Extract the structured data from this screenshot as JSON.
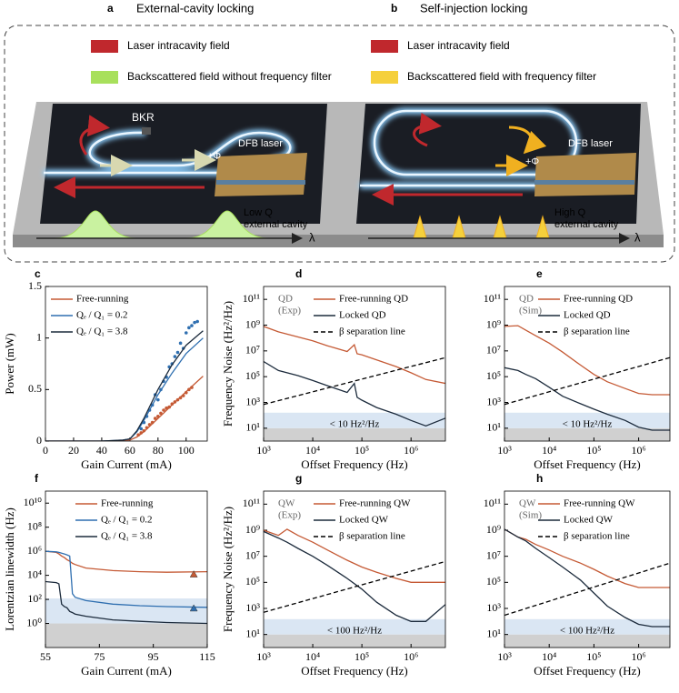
{
  "figure_top": {
    "a": {
      "letter": "a",
      "title": "External-cavity locking",
      "legend": [
        {
          "label": "Laser intracavity field",
          "color": "#c0282d"
        },
        {
          "label": "Backscattered field without frequency filter",
          "color": "#a8e05c"
        }
      ],
      "labels": {
        "bkr": "BKR",
        "phase": "+Φ",
        "laser": "DFB laser",
        "cavity": [
          "Low Q",
          "external cavity"
        ],
        "axis": "λ"
      }
    },
    "b": {
      "letter": "b",
      "title": "Self-injection locking",
      "legend": [
        {
          "label": "Laser intracavity field",
          "color": "#c0282d"
        },
        {
          "label": "Backscattered field with frequency filter",
          "color": "#f5d03c"
        }
      ],
      "labels": {
        "phase": "+Φ",
        "laser": "DFB laser",
        "cavity": [
          "High Q",
          "external cavity"
        ],
        "axis": "λ"
      }
    }
  },
  "chart_data": [
    {
      "type": "line",
      "panel": "c",
      "xlabel": "Gain Current (mA)",
      "ylabel": "Power (mW)",
      "xlim": [
        0,
        115
      ],
      "ylim": [
        0,
        1.5
      ],
      "xticks": [
        0,
        20,
        40,
        60,
        80,
        100
      ],
      "yticks": [
        0,
        0.5,
        1,
        1.5
      ],
      "legend": "upper left",
      "series": [
        {
          "name": "Free-running",
          "color": "#c55a35",
          "x": [
            0,
            20,
            40,
            55,
            60,
            65,
            70,
            80,
            90,
            100,
            112
          ],
          "values": [
            0,
            0,
            0,
            0.005,
            0.01,
            0.04,
            0.09,
            0.22,
            0.35,
            0.48,
            0.63
          ],
          "scatter": {
            "x": [
              66,
              68,
              70,
              72,
              74,
              76,
              78,
              80,
              82,
              84,
              86,
              88,
              90,
              92,
              94,
              96,
              98,
              100,
              102,
              104
            ],
            "y": [
              0.06,
              0.08,
              0.1,
              0.13,
              0.16,
              0.18,
              0.22,
              0.24,
              0.27,
              0.3,
              0.32,
              0.33,
              0.36,
              0.38,
              0.4,
              0.42,
              0.44,
              0.47,
              0.5,
              0.52
            ]
          }
        },
        {
          "name": "Qₑ / Q₁ = 0.2",
          "color": "#2f6fb0",
          "x": [
            0,
            20,
            40,
            55,
            60,
            65,
            70,
            80,
            90,
            100,
            112
          ],
          "values": [
            0,
            0,
            0,
            0.01,
            0.02,
            0.09,
            0.2,
            0.45,
            0.66,
            0.85,
            1.0
          ],
          "scatter": {
            "x": [
              68,
              70,
              72,
              74,
              76,
              78,
              80,
              82,
              84,
              86,
              88,
              90,
              92,
              94,
              96,
              98,
              100,
              102,
              104,
              106,
              108
            ],
            "y": [
              0.12,
              0.18,
              0.24,
              0.3,
              0.35,
              0.45,
              0.4,
              0.5,
              0.58,
              0.62,
              0.72,
              0.75,
              0.82,
              0.86,
              0.95,
              0.9,
              1.05,
              1.1,
              1.12,
              1.15,
              1.16
            ]
          }
        },
        {
          "name": "Qₑ / Q₁ = 3.8",
          "color": "#1c2b3c",
          "x": [
            0,
            20,
            40,
            55,
            60,
            65,
            70,
            80,
            90,
            100,
            112
          ],
          "values": [
            0,
            0,
            0,
            0.01,
            0.02,
            0.1,
            0.22,
            0.5,
            0.74,
            0.93,
            1.07
          ]
        }
      ]
    },
    {
      "type": "line",
      "panel": "d",
      "xlabel": "Offset Frequency (Hz)",
      "ylabel": "Frequency Noise (Hz²/Hz)",
      "xlog": true,
      "ylog": true,
      "xlim": [
        1000,
        5000000
      ],
      "ylim": [
        1,
        1000000000000
      ],
      "xticks": [
        {
          "value": 1000,
          "label": "10³"
        },
        {
          "value": 10000,
          "label": "10⁴"
        },
        {
          "value": 100000,
          "label": "10⁵"
        },
        {
          "value": 1000000,
          "label": "10⁶"
        }
      ],
      "yticks": [
        {
          "value": 10,
          "label": "10¹"
        },
        {
          "value": 1000,
          "label": "10³"
        },
        {
          "value": 100000,
          "label": "10⁵"
        },
        {
          "value": 10000000,
          "label": "10⁷"
        },
        {
          "value": 1000000000,
          "label": "10⁹"
        },
        {
          "value": 100000000000,
          "label": "10¹¹"
        }
      ],
      "legend": "upper right",
      "tag": [
        "QD",
        "(Exp)"
      ],
      "band_label": "< 10 Hz²/Hz",
      "bands": [
        {
          "from": 1,
          "to": 10,
          "color": "#d0d0d0"
        },
        {
          "from": 10,
          "to": 160,
          "color": "#dae6f3"
        }
      ],
      "series": [
        {
          "name": "Free-running QD",
          "color": "#c55a35",
          "x": [
            1000,
            2000,
            5000,
            10000,
            20000,
            50000,
            70000,
            80000,
            100000,
            200000,
            500000,
            1000000,
            2000000,
            5000000
          ],
          "values": [
            800000000,
            300000000,
            120000000,
            60000000,
            25000000,
            9000000,
            30000000,
            6000000,
            5000000,
            2000000,
            600000,
            200000,
            60000,
            30000
          ]
        },
        {
          "name": "Locked QD",
          "color": "#1c2b3c",
          "x": [
            1000,
            2000,
            5000,
            10000,
            20000,
            50000,
            70000,
            80000,
            100000,
            200000,
            500000,
            1000000,
            2000000,
            5000000
          ],
          "values": [
            1500000,
            300000,
            120000,
            50000,
            20000,
            6000,
            30000,
            2500,
            1500,
            400,
            120,
            40,
            15,
            60
          ]
        },
        {
          "name": "β separation line",
          "color": "#000000",
          "dash": true,
          "x": [
            1000,
            5000000
          ],
          "values": [
            700,
            3000000
          ]
        }
      ]
    },
    {
      "type": "line",
      "panel": "e",
      "xlabel": "Offset Frequency (Hz)",
      "xlog": true,
      "ylog": true,
      "xlim": [
        1000,
        5000000
      ],
      "ylim": [
        1,
        1000000000000
      ],
      "xticks": [
        {
          "value": 1000,
          "label": "10³"
        },
        {
          "value": 10000,
          "label": "10⁴"
        },
        {
          "value": 100000,
          "label": "10⁵"
        },
        {
          "value": 1000000,
          "label": "10⁶"
        }
      ],
      "yticks": [
        {
          "value": 10,
          "label": "10¹"
        },
        {
          "value": 1000,
          "label": "10³"
        },
        {
          "value": 100000,
          "label": "10⁵"
        },
        {
          "value": 10000000,
          "label": "10⁷"
        },
        {
          "value": 1000000000,
          "label": "10⁹"
        },
        {
          "value": 100000000000,
          "label": "10¹¹"
        }
      ],
      "legend": "upper right",
      "tag": [
        "QD",
        "(Sim)"
      ],
      "band_label": "< 10 Hz²/Hz",
      "bands": [
        {
          "from": 1,
          "to": 10,
          "color": "#d0d0d0"
        },
        {
          "from": 10,
          "to": 160,
          "color": "#dae6f3"
        }
      ],
      "series": [
        {
          "name": "Free-running QD",
          "color": "#c55a35",
          "x": [
            1000,
            2000,
            3000,
            5000,
            10000,
            20000,
            50000,
            100000,
            200000,
            500000,
            1000000,
            2000000,
            5000000
          ],
          "values": [
            800000000,
            900000000,
            400000000,
            150000000,
            40000000,
            8000000,
            800000,
            150000,
            40000,
            12000,
            5000,
            4000,
            4000
          ]
        },
        {
          "name": "Locked QD",
          "color": "#1c2b3c",
          "x": [
            1000,
            2000,
            3000,
            5000,
            10000,
            20000,
            50000,
            100000,
            200000,
            500000,
            1000000,
            2000000,
            5000000
          ],
          "values": [
            500000,
            300000,
            150000,
            70000,
            15000,
            3000,
            800,
            300,
            120,
            40,
            12,
            7,
            7
          ]
        },
        {
          "name": "β separation line",
          "color": "#000000",
          "dash": true,
          "x": [
            1000,
            5000000
          ],
          "values": [
            700,
            3000000
          ]
        }
      ]
    },
    {
      "type": "line",
      "panel": "f",
      "xlabel": "Gain Current (mA)",
      "ylabel": "Lorentzian linewidth (Hz)",
      "ylog": true,
      "xlim": [
        55,
        115
      ],
      "ylim": [
        0.01,
        100000000000
      ],
      "xticks": [
        55,
        75,
        95,
        115
      ],
      "yticks": [
        {
          "value": 1,
          "label": "10⁰"
        },
        {
          "value": 100,
          "label": "10²"
        },
        {
          "value": 10000,
          "label": "10⁴"
        },
        {
          "value": 1000000,
          "label": "10⁶"
        },
        {
          "value": 100000000,
          "label": "10⁸"
        },
        {
          "value": 10000000000,
          "label": "10¹⁰"
        }
      ],
      "legend": "upper right",
      "bands": [
        {
          "from": 0.01,
          "to": 1,
          "color": "#d0d0d0"
        },
        {
          "from": 1,
          "to": 120,
          "color": "#dae6f3"
        }
      ],
      "series": [
        {
          "name": "Free-running",
          "color": "#c55a35",
          "x": [
            55,
            59,
            60,
            61,
            62,
            63,
            64,
            65,
            66,
            70,
            80,
            90,
            100,
            115
          ],
          "values": [
            1000000,
            800000,
            600000,
            400000,
            300000,
            200000,
            150000,
            100000,
            80000,
            40000,
            25000,
            20000,
            18000,
            20000
          ],
          "marker": {
            "x": 110,
            "y": 12000
          }
        },
        {
          "name": "Qₑ / Q₁ = 0.2",
          "color": "#2f6fb0",
          "x": [
            55,
            59,
            60,
            61,
            62,
            63,
            64,
            65,
            66,
            70,
            80,
            90,
            100,
            115
          ],
          "values": [
            1000000,
            900000,
            800000,
            700000,
            600000,
            500000,
            400000,
            300,
            150,
            80,
            40,
            30,
            25,
            22
          ],
          "marker": {
            "x": 110,
            "y": 18
          }
        },
        {
          "name": "Qₑ / Q₁ = 3.8",
          "color": "#1c2b3c",
          "x": [
            55,
            59,
            60,
            61,
            62,
            63,
            64,
            65,
            66,
            70,
            80,
            90,
            100,
            115
          ],
          "values": [
            3000,
            2500,
            2000,
            40,
            25,
            20,
            10,
            8,
            6,
            4,
            2,
            1.5,
            1.2,
            1
          ]
        }
      ]
    },
    {
      "type": "line",
      "panel": "g",
      "xlabel": "Offset Frequency (Hz)",
      "ylabel": "Frequency Noise (Hz²/Hz)",
      "xlog": true,
      "ylog": true,
      "xlim": [
        1000,
        5000000
      ],
      "ylim": [
        1,
        1000000000000
      ],
      "xticks": [
        {
          "value": 1000,
          "label": "10³"
        },
        {
          "value": 10000,
          "label": "10⁴"
        },
        {
          "value": 100000,
          "label": "10⁵"
        },
        {
          "value": 1000000,
          "label": "10⁶"
        }
      ],
      "yticks": [
        {
          "value": 10,
          "label": "10¹"
        },
        {
          "value": 1000,
          "label": "10³"
        },
        {
          "value": 100000,
          "label": "10⁵"
        },
        {
          "value": 10000000,
          "label": "10⁷"
        },
        {
          "value": 1000000000,
          "label": "10⁹"
        },
        {
          "value": 100000000000,
          "label": "10¹¹"
        }
      ],
      "legend": "upper right",
      "tag": [
        "QW",
        "(Exp)"
      ],
      "band_label": "< 100 Hz²/Hz",
      "bands": [
        {
          "from": 1,
          "to": 10,
          "color": "#d0d0d0"
        },
        {
          "from": 10,
          "to": 150,
          "color": "#dae6f3"
        }
      ],
      "series": [
        {
          "name": "Free-running QW",
          "color": "#c55a35",
          "x": [
            1000,
            2000,
            3000,
            5000,
            10000,
            20000,
            50000,
            100000,
            200000,
            500000,
            1000000,
            2000000,
            5000000
          ],
          "values": [
            1000000000,
            400000000,
            1200000000,
            400000000,
            120000000,
            30000000,
            5000000,
            1500000,
            600000,
            200000,
            100000,
            100000,
            100000
          ]
        },
        {
          "name": "Locked QW",
          "color": "#1c2b3c",
          "x": [
            1000,
            2000,
            3000,
            5000,
            10000,
            20000,
            50000,
            100000,
            200000,
            500000,
            1000000,
            2000000,
            5000000
          ],
          "values": [
            800000000,
            250000000,
            120000000,
            40000000,
            10000000,
            2000000,
            200000,
            30000,
            3000,
            300,
            100,
            100,
            2000
          ]
        },
        {
          "name": "β separation line",
          "color": "#000000",
          "dash": true,
          "x": [
            1000,
            5000000
          ],
          "values": [
            500,
            4000000
          ]
        }
      ]
    },
    {
      "type": "line",
      "panel": "h",
      "xlabel": "Offset Frequency (Hz)",
      "xlog": true,
      "ylog": true,
      "xlim": [
        1000,
        5000000
      ],
      "ylim": [
        1,
        1000000000000
      ],
      "xticks": [
        {
          "value": 1000,
          "label": "10³"
        },
        {
          "value": 10000,
          "label": "10⁴"
        },
        {
          "value": 100000,
          "label": "10⁵"
        },
        {
          "value": 1000000,
          "label": "10⁶"
        }
      ],
      "yticks": [
        {
          "value": 10,
          "label": "10¹"
        },
        {
          "value": 1000,
          "label": "10³"
        },
        {
          "value": 100000,
          "label": "10⁵"
        },
        {
          "value": 10000000,
          "label": "10⁷"
        },
        {
          "value": 1000000000,
          "label": "10⁹"
        },
        {
          "value": 100000000000,
          "label": "10¹¹"
        }
      ],
      "legend": "upper right",
      "tag": [
        "QW",
        "(Sim)"
      ],
      "band_label": "< 100 Hz²/Hz",
      "bands": [
        {
          "from": 1,
          "to": 10,
          "color": "#d0d0d0"
        },
        {
          "from": 10,
          "to": 150,
          "color": "#dae6f3"
        }
      ],
      "series": [
        {
          "name": "Free-running QW",
          "color": "#c55a35",
          "x": [
            1000,
            2000,
            3000,
            5000,
            10000,
            20000,
            50000,
            100000,
            200000,
            500000,
            1000000,
            2000000,
            5000000
          ],
          "values": [
            1200000000,
            300000000,
            200000000,
            80000000,
            30000000,
            10000000,
            3000000,
            1000000,
            300000,
            80000,
            40000,
            40000,
            40000
          ]
        },
        {
          "name": "Locked QW",
          "color": "#1c2b3c",
          "x": [
            1000,
            2000,
            3000,
            5000,
            10000,
            20000,
            50000,
            100000,
            200000,
            500000,
            1000000,
            2000000,
            5000000
          ],
          "values": [
            1200000000,
            300000000,
            150000000,
            40000000,
            8000000,
            1500000,
            150000,
            15000,
            1500,
            200,
            60,
            40,
            40
          ]
        },
        {
          "name": "β separation line",
          "color": "#000000",
          "dash": true,
          "x": [
            1000,
            5000000
          ],
          "values": [
            300,
            3000000
          ]
        }
      ]
    }
  ]
}
